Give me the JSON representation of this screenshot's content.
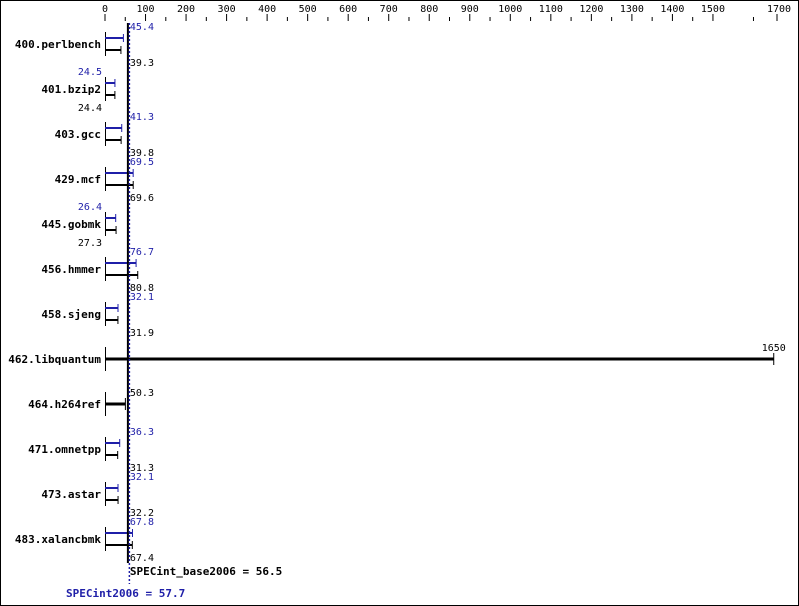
{
  "chart_data": {
    "type": "bar",
    "orientation": "horizontal",
    "title": "",
    "xlim": [
      0,
      1700
    ],
    "x_ticks": [
      0,
      100,
      200,
      300,
      400,
      500,
      600,
      700,
      800,
      900,
      1000,
      1100,
      1200,
      1300,
      1400,
      1500,
      1700
    ],
    "x_tick_labels": [
      "0",
      "100",
      "200",
      "300",
      "400",
      "500",
      "600",
      "700",
      "800",
      "900",
      "1000",
      "1100",
      "1200",
      "1300",
      "1400",
      "1500",
      "1700"
    ],
    "axis_position": "top",
    "grid": false,
    "categories": [
      "400.perlbench",
      "401.bzip2",
      "403.gcc",
      "429.mcf",
      "445.gobmk",
      "456.hmmer",
      "458.sjeng",
      "462.libquantum",
      "464.h264ref",
      "471.omnetpp",
      "473.astar",
      "483.xalancbmk"
    ],
    "series": [
      {
        "name": "SPECint2006",
        "color": "#1f1fa8",
        "values": [
          45.4,
          24.5,
          41.3,
          69.5,
          26.4,
          76.7,
          32.1,
          null,
          null,
          36.3,
          32.1,
          67.8
        ]
      },
      {
        "name": "SPECint_base2006",
        "color": "#000000",
        "values": [
          39.3,
          24.4,
          39.8,
          69.6,
          27.3,
          80.8,
          31.9,
          1650,
          50.3,
          31.3,
          32.2,
          67.4
        ]
      }
    ],
    "value_labels": {
      "peak": [
        "45.4",
        "24.5",
        "41.3",
        "69.5",
        "26.4",
        "76.7",
        "32.1",
        "",
        "",
        "36.3",
        "32.1",
        "67.8"
      ],
      "base": [
        "39.3",
        "24.4",
        "39.8",
        "69.6",
        "27.3",
        "80.8",
        "31.9",
        "1650",
        "50.3",
        "31.3",
        "32.2",
        "67.4"
      ]
    },
    "reference_lines": [
      {
        "label": "SPECint_base2006 = 56.5",
        "value": 56.5,
        "color": "#000000",
        "style": "solid"
      },
      {
        "label": "SPECint2006 = 57.7",
        "value": 57.7,
        "color": "#1f1fa8",
        "style": "dotted"
      }
    ]
  }
}
